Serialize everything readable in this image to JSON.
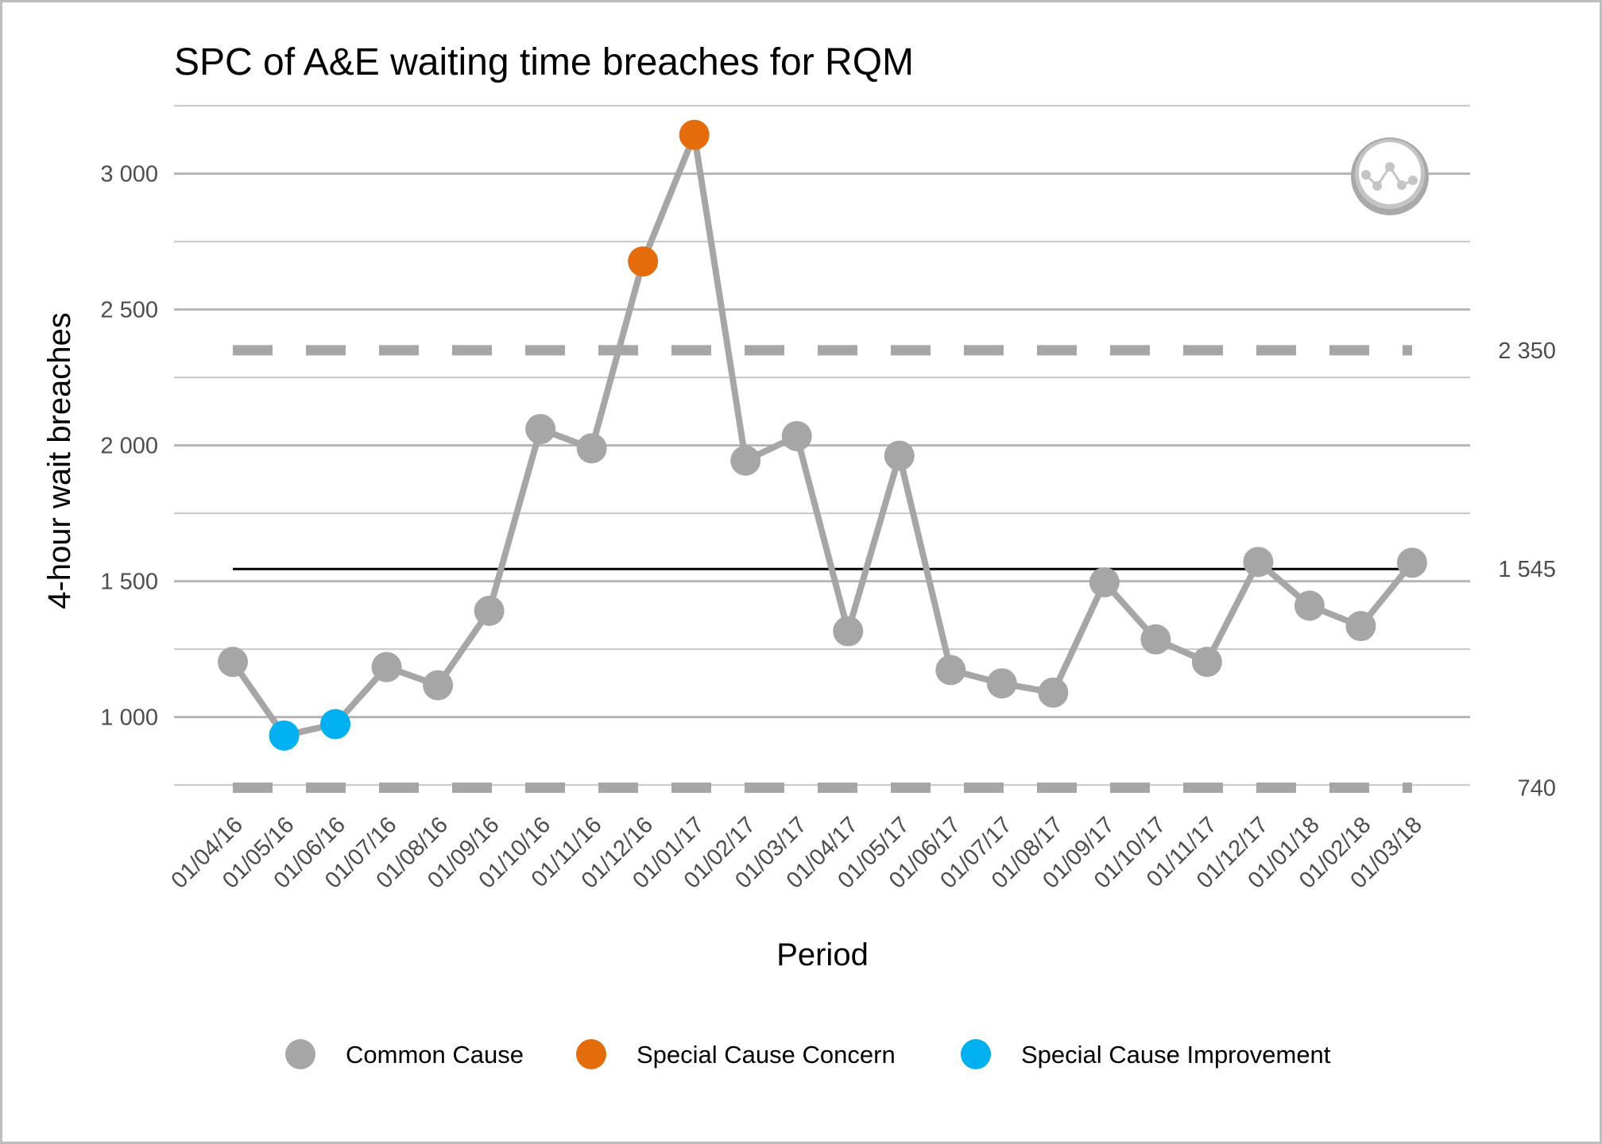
{
  "chart_data": {
    "type": "line",
    "title": "SPC of A&E waiting time breaches for RQM",
    "xlabel": "Period",
    "ylabel": "4-hour wait breaches",
    "ylim": [
      740,
      3250
    ],
    "yticks": [
      1000,
      1500,
      2000,
      2500,
      3000
    ],
    "ytick_labels": [
      "1 000",
      "1 500",
      "2 000",
      "2 500",
      "3 000"
    ],
    "minor_gridlines": [
      750,
      1250,
      1750,
      2250,
      2750,
      3250
    ],
    "grid": true,
    "categories": [
      "01/04/16",
      "01/05/16",
      "01/06/16",
      "01/07/16",
      "01/08/16",
      "01/09/16",
      "01/10/16",
      "01/11/16",
      "01/12/16",
      "01/01/17",
      "01/02/17",
      "01/03/17",
      "01/04/17",
      "01/05/17",
      "01/06/17",
      "01/07/17",
      "01/08/17",
      "01/09/17",
      "01/10/17",
      "01/11/17",
      "01/12/17",
      "01/01/18",
      "01/02/18",
      "01/03/18"
    ],
    "values": [
      1203,
      932,
      974,
      1184,
      1117,
      1391,
      2060,
      1989,
      2677,
      3143,
      1944,
      2034,
      1316,
      1962,
      1173,
      1124,
      1090,
      1496,
      1286,
      1203,
      1571,
      1410,
      1335,
      1568
    ],
    "point_class": [
      "common",
      "improvement",
      "improvement",
      "common",
      "common",
      "common",
      "common",
      "common",
      "concern",
      "concern",
      "common",
      "common",
      "common",
      "common",
      "common",
      "common",
      "common",
      "common",
      "common",
      "common",
      "common",
      "common",
      "common",
      "common"
    ],
    "mean": {
      "value": 1545,
      "label": "1 545"
    },
    "ucl": {
      "value": 2350,
      "label": "2 350"
    },
    "lcl": {
      "value": 740,
      "label": "740"
    },
    "line_color": "#a6a6a6",
    "legend_position": "bottom",
    "legend": [
      {
        "key": "common",
        "label": "Common Cause",
        "color": "#a6a6a6"
      },
      {
        "key": "concern",
        "label": "Special Cause Concern",
        "color": "#e46c0a"
      },
      {
        "key": "improvement",
        "label": "Special Cause Improvement",
        "color": "#00b0f0"
      }
    ],
    "variation_icon": "common-cause-variation-icon"
  }
}
